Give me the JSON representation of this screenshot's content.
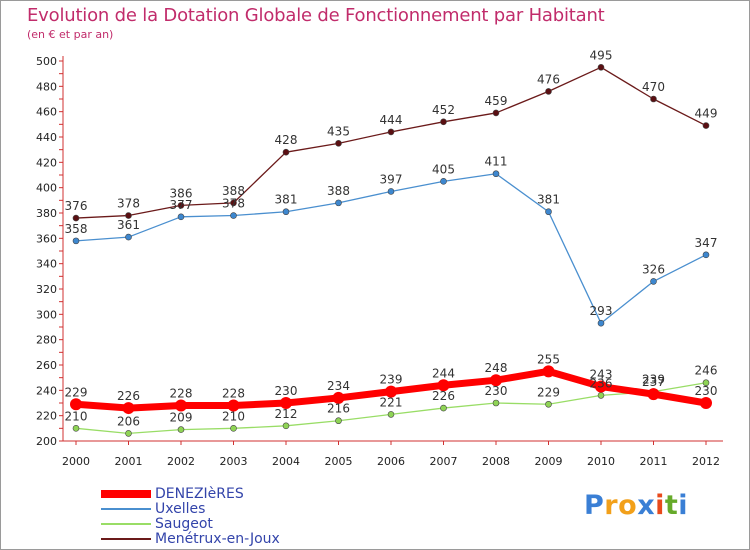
{
  "header": {
    "title": "Evolution de la Dotation Globale de Fonctionnement par Habitant",
    "subtitle": "(en € et par an)"
  },
  "logo": {
    "letters": [
      "P",
      "r",
      "o",
      "x",
      "i",
      "t",
      "i"
    ],
    "colors": [
      "#3a7fd5",
      "#f2a01a",
      "#f2a01a",
      "#3a7fd5",
      "#e84a1c",
      "#66aa2a",
      "#3a7fd5"
    ]
  },
  "chart_data": {
    "type": "line",
    "title": "Evolution de la Dotation Globale de Fonctionnement par Habitant",
    "subtitle": "(en € et par an)",
    "xlabel": "",
    "ylabel": "",
    "x": [
      "2000",
      "2001",
      "2002",
      "2003",
      "2004",
      "2005",
      "2006",
      "2007",
      "2008",
      "2009",
      "2010",
      "2011",
      "2012"
    ],
    "ylim": [
      200,
      500
    ],
    "yticks": [
      200,
      220,
      240,
      260,
      280,
      300,
      320,
      340,
      360,
      380,
      400,
      420,
      440,
      460,
      480,
      500
    ],
    "grid": false,
    "legend_position": "bottom-left",
    "series": [
      {
        "name": "DENEZIèRES",
        "color": "#ff0000",
        "values": [
          229,
          226,
          228,
          228,
          230,
          234,
          239,
          244,
          248,
          255,
          243,
          237,
          230
        ],
        "labels": [
          "229",
          "226",
          "228",
          "228",
          "230",
          "234",
          "239",
          "244",
          "248",
          "255",
          "243",
          "237",
          "230"
        ]
      },
      {
        "name": "Uxelles",
        "color": "#4a8fcf",
        "values": [
          358,
          361,
          377,
          378,
          381,
          388,
          397,
          405,
          411,
          381,
          293,
          326,
          347
        ],
        "labels": [
          "358",
          "361",
          "377",
          "378",
          "381",
          "388",
          "397",
          "405",
          "411",
          "381",
          "293",
          "326",
          "347"
        ]
      },
      {
        "name": "Saugeot",
        "color": "#99dd66",
        "values": [
          210,
          206,
          209,
          210,
          212,
          216,
          221,
          226,
          230,
          229,
          236,
          239,
          246
        ],
        "labels": [
          "210",
          "206",
          "209",
          "210",
          "212",
          "216",
          "221",
          "226",
          "230",
          "229",
          "236",
          "239",
          "246"
        ]
      },
      {
        "name": "Menétrux-en-Joux",
        "color": "#6b1a1a",
        "values": [
          376,
          378,
          386,
          388,
          428,
          435,
          444,
          452,
          459,
          476,
          495,
          470,
          449
        ],
        "labels": [
          "376",
          "378",
          "386",
          "388",
          "428",
          "435",
          "444",
          "452",
          "459",
          "476",
          "495",
          "470",
          "449"
        ]
      }
    ]
  }
}
